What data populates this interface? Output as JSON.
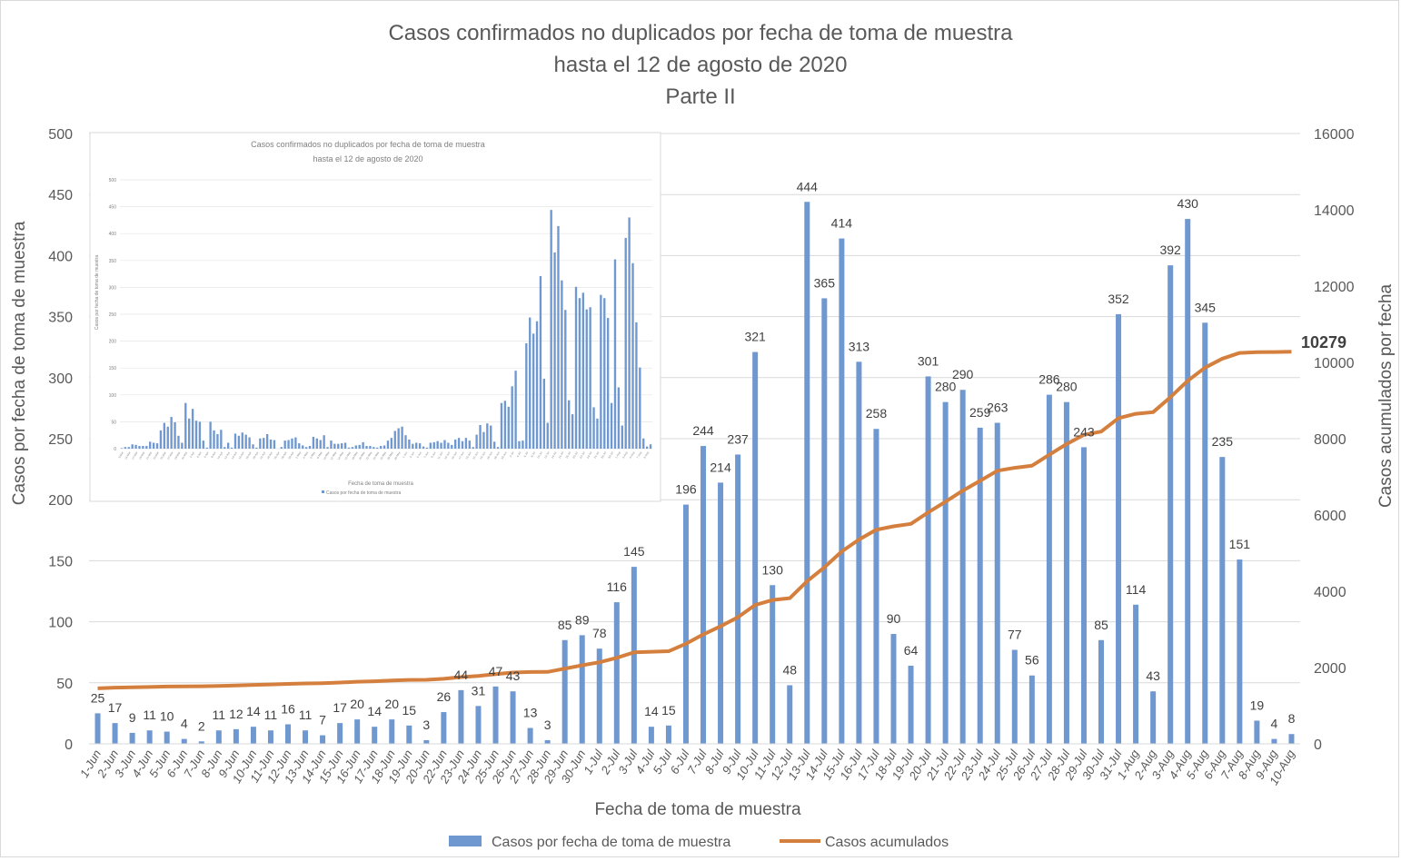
{
  "chart_data": {
    "type": "bar+line",
    "title": [
      "Casos confirmados no duplicados por fecha de toma de muestra",
      "hasta el 12 de agosto de 2020",
      "Parte II"
    ],
    "xlabel": "Fecha de toma de muestra",
    "ylabel": "Casos por fecha de toma de muestra",
    "y2label": "Casos acumulados por fecha",
    "ylim": [
      0,
      500
    ],
    "y2lim": [
      0,
      16000
    ],
    "yticks": [
      0,
      50,
      100,
      150,
      200,
      250,
      300,
      350,
      400,
      450,
      500
    ],
    "y2ticks": [
      0,
      2000,
      4000,
      6000,
      8000,
      10000,
      12000,
      14000,
      16000
    ],
    "grid": true,
    "legend_position": "bottom",
    "categories": [
      "1-Jun",
      "2-Jun",
      "3-Jun",
      "4-Jun",
      "5-Jun",
      "6-Jun",
      "7-Jun",
      "8-Jun",
      "9-Jun",
      "10-Jun",
      "11-Jun",
      "12-Jun",
      "13-Jun",
      "14-Jun",
      "15-Jun",
      "16-Jun",
      "17-Jun",
      "18-Jun",
      "19-Jun",
      "20-Jun",
      "22-Jun",
      "23-Jun",
      "24-Jun",
      "25-Jun",
      "26-Jun",
      "27-Jun",
      "28-Jun",
      "29-Jun",
      "30-Jun",
      "1-Jul",
      "2-Jul",
      "3-Jul",
      "4-Jul",
      "5-Jul",
      "6-Jul",
      "7-Jul",
      "8-Jul",
      "9-Jul",
      "10-Jul",
      "11-Jul",
      "12-Jul",
      "13-Jul",
      "14-Jul",
      "15-Jul",
      "16-Jul",
      "17-Jul",
      "18-Jul",
      "19-Jul",
      "20-Jul",
      "21-Jul",
      "22-Jul",
      "23-Jul",
      "24-Jul",
      "25-Jul",
      "26-Jul",
      "27-Jul",
      "28-Jul",
      "29-Jul",
      "30-Jul",
      "31-Jul",
      "1-Aug",
      "2-Aug",
      "3-Aug",
      "4-Aug",
      "5-Aug",
      "6-Aug",
      "7-Aug",
      "8-Aug",
      "9-Aug",
      "10-Aug"
    ],
    "series": [
      {
        "name": "Casos por fecha de toma de muestra",
        "type": "bar",
        "axis": "left",
        "color": "#6f97d0",
        "values": [
          25,
          17,
          9,
          11,
          10,
          4,
          2,
          11,
          12,
          14,
          11,
          16,
          11,
          7,
          17,
          20,
          14,
          20,
          15,
          3,
          26,
          44,
          31,
          47,
          43,
          13,
          3,
          85,
          89,
          78,
          116,
          145,
          14,
          15,
          196,
          244,
          214,
          237,
          321,
          130,
          48,
          444,
          365,
          414,
          313,
          258,
          90,
          64,
          301,
          280,
          290,
          259,
          263,
          77,
          56,
          286,
          280,
          243,
          85,
          352,
          114,
          43,
          392,
          430,
          345,
          235,
          151,
          19,
          4,
          8
        ]
      },
      {
        "name": "Casos acumulados",
        "type": "line",
        "axis": "right",
        "color": "#d47f3e",
        "start_offset": 1430,
        "final_value_label": "10279"
      }
    ],
    "inset": {
      "title": [
        "Casos confirmados no duplicados por fecha de toma de muestra",
        "hasta el 12 de agosto de 2020"
      ],
      "xlabel": "Fecha de toma de muestra",
      "ylabel": "Casos por fecha de toma de muestra",
      "legend": "Casos por fecha de toma de muestra",
      "ylim": [
        0,
        500
      ],
      "yticks": [
        0,
        50,
        100,
        150,
        200,
        250,
        300,
        350,
        400,
        450,
        500
      ],
      "start_date": "9-Mar",
      "tick_labels_sample": [
        "9-Mar",
        "14-Mar",
        "17-Mar",
        "19-Mar",
        "21-Mar",
        "23-Mar",
        "25-Mar",
        "27-Mar",
        "29-Mar",
        "31-Mar",
        "2-Apr",
        "4-Apr",
        "6-Apr",
        "8-Apr",
        "10-Apr",
        "12-Apr",
        "14-Apr",
        "16-Apr",
        "18-Apr",
        "20-Apr",
        "22-Apr",
        "24-Apr",
        "26-Apr",
        "28-Apr",
        "30-Apr",
        "2-May",
        "4-May",
        "6-May",
        "8-May",
        "10-May",
        "12-May",
        "14-May",
        "16-May",
        "18-May",
        "20-May",
        "22-May",
        "24-May",
        "26-May",
        "28-May",
        "30-May",
        "1-Jun",
        "3-Jun",
        "5-Jun",
        "7-Jun",
        "9-Jun",
        "11-Jun",
        "13-Jun",
        "15-Jun",
        "17-Jun",
        "19-Jun",
        "22-Jun",
        "24-Jun",
        "26-Jun",
        "28-Jun",
        "30-Jun",
        "2-Jul",
        "4-Jul",
        "6-Jul",
        "8-Jul",
        "10-Jul",
        "12-Jul",
        "14-Jul",
        "16-Jul",
        "18-Jul",
        "20-Jul",
        "22-Jul",
        "24-Jul",
        "26-Jul",
        "28-Jul",
        "30-Jul",
        "1-Aug",
        "3-Aug",
        "5-Aug",
        "7-Aug",
        "9-Aug"
      ],
      "values_before_june_approx": [
        1,
        3,
        3,
        8,
        7,
        5,
        5,
        5,
        13,
        11,
        10,
        34,
        48,
        41,
        59,
        49,
        24,
        11,
        85,
        56,
        74,
        52,
        50,
        15,
        2,
        50,
        34,
        27,
        35,
        3,
        11,
        2,
        28,
        24,
        30,
        26,
        21,
        8,
        2,
        19,
        20,
        27,
        17,
        16,
        0,
        3,
        15,
        16,
        19,
        21,
        10,
        6,
        3,
        5,
        22,
        19,
        16,
        25,
        3,
        15,
        9,
        9,
        10,
        11,
        2,
        3,
        6,
        7,
        12,
        5,
        5,
        3,
        2,
        5,
        6,
        15,
        20,
        33,
        38,
        41
      ]
    }
  }
}
